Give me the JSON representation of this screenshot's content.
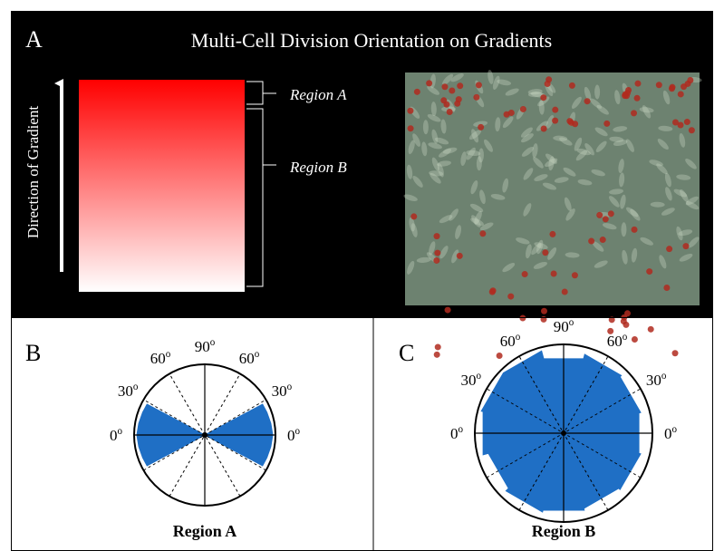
{
  "panel_a": {
    "letter": "A",
    "title": "Multi-Cell Division Orientation on Gradients",
    "axis_label": "Direction of Gradient",
    "regions": [
      "Region A",
      "Region B"
    ]
  },
  "panel_b": {
    "letter": "B",
    "caption": "Region A"
  },
  "panel_c": {
    "letter": "C",
    "caption": "Region B"
  },
  "angle_labels": [
    "0",
    "30",
    "60",
    "90",
    "60",
    "30",
    "0"
  ],
  "degree_mark": "o"
}
